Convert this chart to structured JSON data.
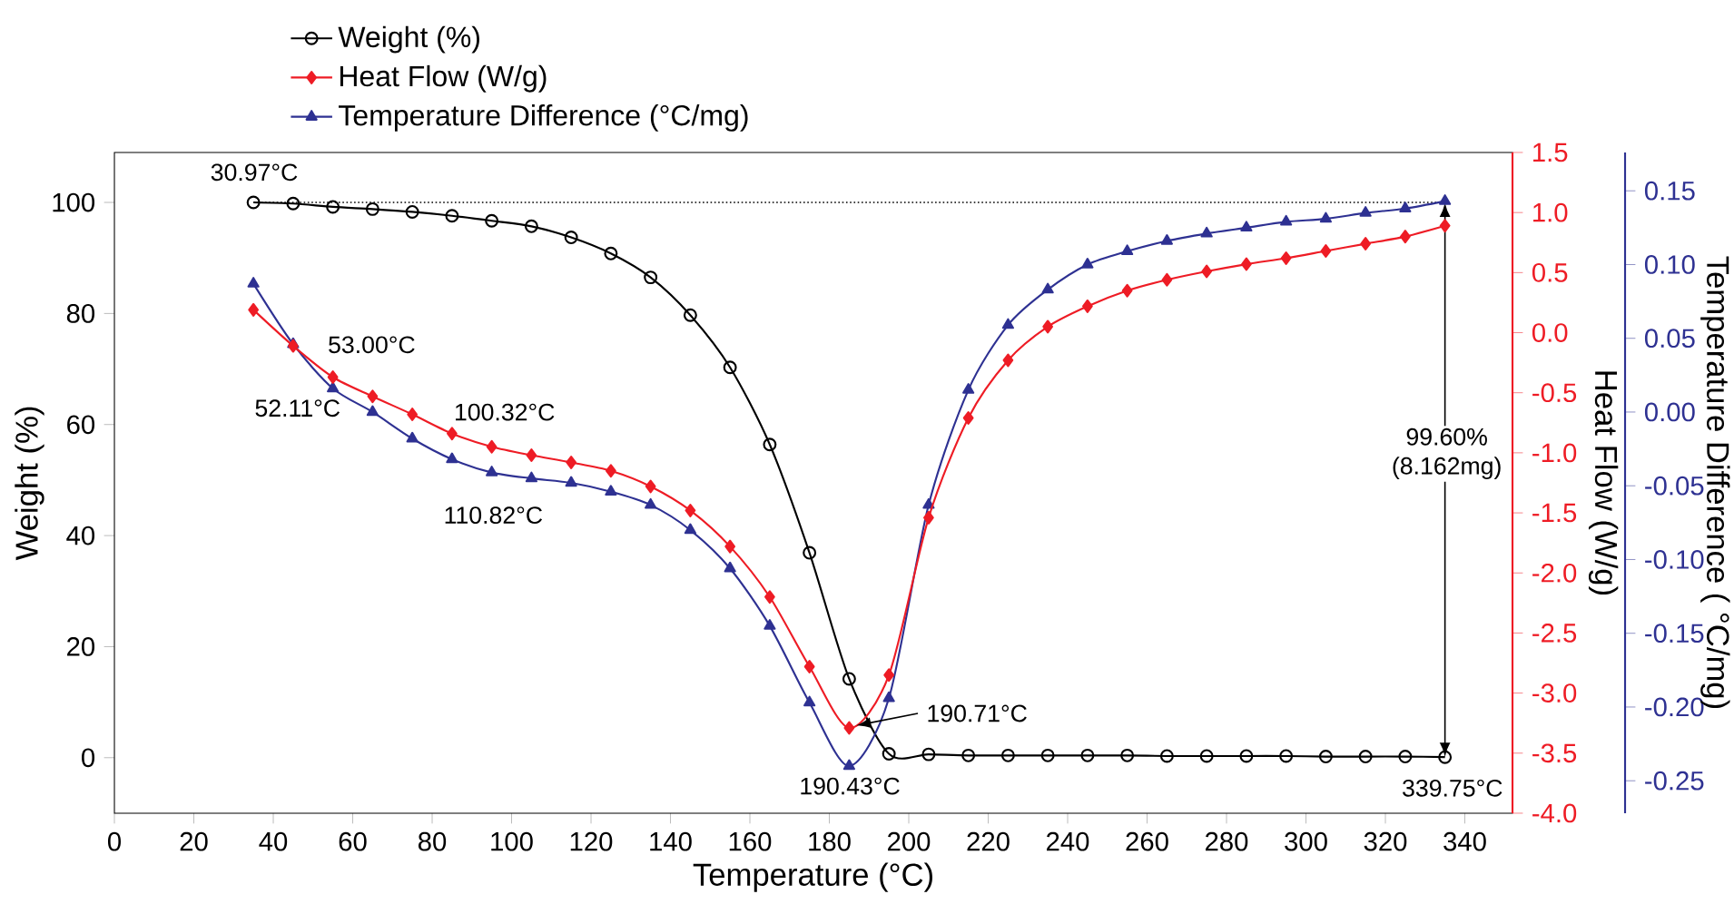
{
  "chart_data": {
    "type": "line",
    "xlabel": "Temperature (°C)",
    "ylabel": "Weight (%)",
    "y2label": "Heat Flow (W/g)",
    "y3label": "Temperature Difference ( °C/mg)",
    "x": [
      35,
      45,
      55,
      65,
      75,
      85,
      95,
      105,
      115,
      125,
      135,
      145,
      155,
      165,
      175,
      185,
      195,
      205,
      215,
      225,
      235,
      245,
      255,
      265,
      275,
      285,
      295,
      305,
      315,
      325,
      335
    ],
    "xlim": [
      0,
      352
    ],
    "xticks": [
      0,
      20,
      40,
      60,
      80,
      100,
      120,
      140,
      160,
      180,
      200,
      220,
      240,
      260,
      280,
      300,
      320,
      340
    ],
    "ylim": [
      -10,
      109
    ],
    "yticks": [
      0,
      20,
      40,
      60,
      80,
      100
    ],
    "y2lim": [
      -4,
      1.5
    ],
    "y2ticks": [
      {
        "value": -4,
        "label": "-4.0"
      },
      -3.5,
      {
        "value": -3,
        "label": "-3.0"
      },
      -2.5,
      {
        "value": -2,
        "label": "-2.0"
      },
      -1.5,
      {
        "value": -1,
        "label": "-1.0"
      },
      -0.5,
      {
        "value": 0,
        "label": "0.0"
      },
      0.5,
      {
        "value": 1,
        "label": "1.0"
      },
      1.5
    ],
    "y3lim": [
      -0.272,
      0.176
    ],
    "y3ticks": [
      -0.25,
      {
        "value": -0.2,
        "label": "-0.20"
      },
      -0.15,
      {
        "value": -0.1,
        "label": "-0.10"
      },
      -0.05,
      {
        "value": 0,
        "label": "0.00"
      },
      0.05,
      {
        "value": 0.1,
        "label": "0.10"
      },
      0.15
    ],
    "legend": "top",
    "series": [
      {
        "name": "Weight (%)",
        "color": "#000000",
        "marker": "circle",
        "axis": "y",
        "values": [
          100,
          99.8,
          99.2,
          98.8,
          98.3,
          97.6,
          96.7,
          95.7,
          93.7,
          90.8,
          86.5,
          79.7,
          70.3,
          56.4,
          36.9,
          14.2,
          0.7,
          0.6,
          0.4,
          0.4,
          0.4,
          0.4,
          0.4,
          0.3,
          0.3,
          0.3,
          0.3,
          0.2,
          0.2,
          0.2,
          0.1
        ]
      },
      {
        "name": "Heat Flow (W/g)",
        "color": "#ee1c25",
        "marker": "diamond",
        "axis": "y2",
        "values": [
          0.19,
          -0.11,
          -0.37,
          -0.53,
          -0.68,
          -0.84,
          -0.95,
          -1.02,
          -1.08,
          -1.15,
          -1.28,
          -1.48,
          -1.78,
          -2.2,
          -2.78,
          -3.29,
          -2.85,
          -1.54,
          -0.71,
          -0.23,
          0.05,
          0.22,
          0.35,
          0.44,
          0.51,
          0.57,
          0.62,
          0.68,
          0.74,
          0.8,
          0.89
        ]
      },
      {
        "name": "Temperature Difference (°C/mg)",
        "color": "#2e3192",
        "marker": "triangle",
        "axis": "y3",
        "values": [
          0.087,
          0.046,
          0.016,
          0.0,
          -0.018,
          -0.032,
          -0.041,
          -0.045,
          -0.048,
          -0.054,
          -0.063,
          -0.08,
          -0.106,
          -0.145,
          -0.197,
          -0.24,
          -0.194,
          -0.063,
          0.015,
          0.059,
          0.083,
          0.1,
          0.109,
          0.116,
          0.121,
          0.125,
          0.129,
          0.131,
          0.135,
          0.138,
          0.143
        ]
      }
    ],
    "ref_lines": [
      {
        "axis": "y",
        "value": 100,
        "line_style": "dotted"
      }
    ],
    "annotations": [
      "30.97°C",
      "53.00°C",
      "52.11°C",
      "100.32°C",
      "110.82°C",
      "190.43°C",
      "190.71°C",
      "99.60% (8.162mg)",
      "339.75°C"
    ]
  }
}
